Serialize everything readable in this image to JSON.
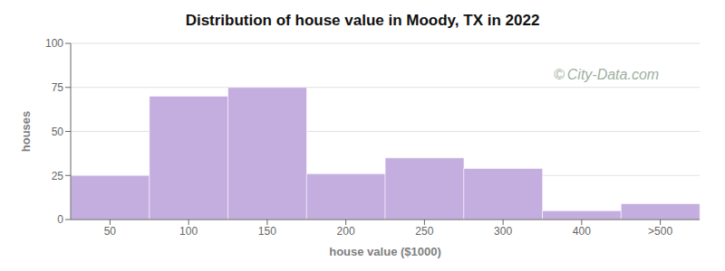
{
  "chart_data": {
    "type": "bar",
    "title": "Distribution of house value in Moody, TX in 2022",
    "x_label": "house value ($1000)",
    "y_label": "houses",
    "categories": [
      "50",
      "100",
      "150",
      "200",
      "250",
      "300",
      "400",
      ">500"
    ],
    "values": [
      25,
      70,
      75,
      26,
      35,
      29,
      5,
      9
    ],
    "color": "#c4aee0",
    "ylim": [
      0,
      100
    ],
    "yticks": [
      0,
      25,
      50,
      75,
      100
    ],
    "grid": true,
    "annotations": [
      "©",
      "City-Data.com"
    ]
  }
}
